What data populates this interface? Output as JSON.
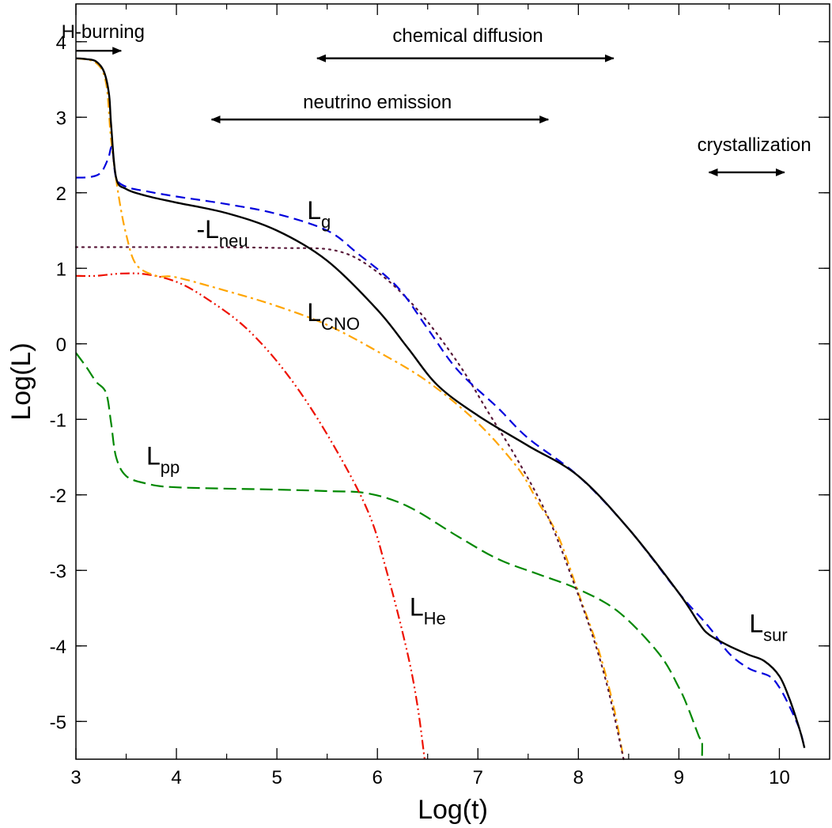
{
  "chart_data": {
    "type": "line",
    "xlabel": "Log(t)",
    "ylabel": "Log(L)",
    "xlim": [
      3,
      10.5
    ],
    "ylim": [
      -5.5,
      4.5
    ],
    "grid": false,
    "x_ticks": [
      3,
      4,
      5,
      6,
      7,
      8,
      9,
      10
    ],
    "y_ticks": [
      4,
      3,
      2,
      1,
      0,
      -1,
      -2,
      -3,
      -4,
      -5
    ],
    "x_tick_labels": [
      "3",
      "4",
      "5",
      "6",
      "7",
      "8",
      "9",
      "10"
    ],
    "y_tick_labels": [
      "4",
      "3",
      "2",
      "1",
      "0",
      "-1",
      "-2",
      "-3",
      "-4",
      "-5"
    ],
    "series": [
      {
        "key": "sur",
        "color": "#000000",
        "dash": "solid",
        "points": [
          [
            3.0,
            3.78
          ],
          [
            3.1,
            3.77
          ],
          [
            3.2,
            3.74
          ],
          [
            3.28,
            3.6
          ],
          [
            3.33,
            3.3
          ],
          [
            3.35,
            2.9
          ],
          [
            3.4,
            2.2
          ],
          [
            3.5,
            2.05
          ],
          [
            3.7,
            1.96
          ],
          [
            4.0,
            1.87
          ],
          [
            4.5,
            1.73
          ],
          [
            5.0,
            1.5
          ],
          [
            5.5,
            1.1
          ],
          [
            6.0,
            0.45
          ],
          [
            6.3,
            -0.05
          ],
          [
            6.6,
            -0.55
          ],
          [
            7.0,
            -0.95
          ],
          [
            7.5,
            -1.35
          ],
          [
            8.0,
            -1.75
          ],
          [
            8.5,
            -2.45
          ],
          [
            9.0,
            -3.3
          ],
          [
            9.2,
            -3.7
          ],
          [
            9.3,
            -3.85
          ],
          [
            9.5,
            -4.0
          ],
          [
            9.7,
            -4.12
          ],
          [
            9.85,
            -4.2
          ],
          [
            10.0,
            -4.4
          ],
          [
            10.1,
            -4.7
          ],
          [
            10.2,
            -5.1
          ],
          [
            10.25,
            -5.35
          ]
        ]
      },
      {
        "key": "g",
        "color": "#0000dd",
        "dash": "12,7",
        "points": [
          [
            3.0,
            2.2
          ],
          [
            3.15,
            2.21
          ],
          [
            3.25,
            2.27
          ],
          [
            3.32,
            2.45
          ],
          [
            3.36,
            2.6
          ],
          [
            3.4,
            2.2
          ],
          [
            3.5,
            2.08
          ],
          [
            3.7,
            2.02
          ],
          [
            4.0,
            1.95
          ],
          [
            4.5,
            1.85
          ],
          [
            5.0,
            1.72
          ],
          [
            5.5,
            1.5
          ],
          [
            5.8,
            1.2
          ],
          [
            6.2,
            0.75
          ],
          [
            6.5,
            0.2
          ],
          [
            6.8,
            -0.35
          ],
          [
            7.2,
            -0.85
          ],
          [
            7.5,
            -1.25
          ],
          [
            8.0,
            -1.75
          ],
          [
            8.5,
            -2.45
          ],
          [
            9.0,
            -3.3
          ],
          [
            9.3,
            -3.75
          ],
          [
            9.5,
            -4.1
          ],
          [
            9.7,
            -4.3
          ],
          [
            9.9,
            -4.4
          ],
          [
            10.0,
            -4.55
          ],
          [
            10.1,
            -4.8
          ],
          [
            10.2,
            -5.1
          ],
          [
            10.25,
            -5.35
          ]
        ]
      },
      {
        "key": "neu",
        "color": "#5a1a3a",
        "dash": "2,6",
        "points": [
          [
            3.0,
            1.28
          ],
          [
            4.0,
            1.28
          ],
          [
            5.0,
            1.27
          ],
          [
            5.6,
            1.23
          ],
          [
            6.0,
            0.95
          ],
          [
            6.4,
            0.45
          ],
          [
            6.8,
            -0.25
          ],
          [
            7.1,
            -0.9
          ],
          [
            7.4,
            -1.55
          ],
          [
            7.7,
            -2.3
          ],
          [
            7.95,
            -3.15
          ],
          [
            8.15,
            -3.9
          ],
          [
            8.3,
            -4.6
          ],
          [
            8.45,
            -5.5
          ]
        ]
      },
      {
        "key": "cno",
        "color": "#ffa500",
        "dash": "12,5,3,5",
        "points": [
          [
            3.0,
            3.78
          ],
          [
            3.2,
            3.72
          ],
          [
            3.3,
            3.45
          ],
          [
            3.35,
            2.7
          ],
          [
            3.42,
            2.0
          ],
          [
            3.5,
            1.45
          ],
          [
            3.6,
            1.05
          ],
          [
            3.8,
            0.9
          ],
          [
            4.0,
            0.88
          ],
          [
            4.5,
            0.7
          ],
          [
            5.0,
            0.5
          ],
          [
            5.5,
            0.25
          ],
          [
            6.0,
            -0.1
          ],
          [
            6.5,
            -0.5
          ],
          [
            7.0,
            -1.05
          ],
          [
            7.4,
            -1.65
          ],
          [
            7.6,
            -2.1
          ],
          [
            7.8,
            -2.55
          ],
          [
            8.0,
            -3.3
          ],
          [
            8.2,
            -4.05
          ],
          [
            8.35,
            -4.8
          ],
          [
            8.45,
            -5.5
          ]
        ]
      },
      {
        "key": "he",
        "color": "#ee1100",
        "dash": "12,4,2,4,2,4",
        "points": [
          [
            3.0,
            0.9
          ],
          [
            3.2,
            0.9
          ],
          [
            3.45,
            0.93
          ],
          [
            3.7,
            0.92
          ],
          [
            4.0,
            0.82
          ],
          [
            4.3,
            0.6
          ],
          [
            4.7,
            0.2
          ],
          [
            5.1,
            -0.4
          ],
          [
            5.5,
            -1.2
          ],
          [
            5.9,
            -2.2
          ],
          [
            6.1,
            -3.05
          ],
          [
            6.3,
            -4.1
          ],
          [
            6.4,
            -4.8
          ],
          [
            6.47,
            -5.5
          ]
        ]
      },
      {
        "key": "pp",
        "color": "#008800",
        "dash": "16,7",
        "points": [
          [
            3.0,
            -0.12
          ],
          [
            3.1,
            -0.3
          ],
          [
            3.2,
            -0.5
          ],
          [
            3.3,
            -0.65
          ],
          [
            3.35,
            -1.05
          ],
          [
            3.4,
            -1.5
          ],
          [
            3.5,
            -1.75
          ],
          [
            3.7,
            -1.85
          ],
          [
            4.0,
            -1.9
          ],
          [
            5.0,
            -1.93
          ],
          [
            5.5,
            -1.95
          ],
          [
            5.9,
            -1.98
          ],
          [
            6.3,
            -2.15
          ],
          [
            6.8,
            -2.55
          ],
          [
            7.2,
            -2.85
          ],
          [
            7.6,
            -3.05
          ],
          [
            8.0,
            -3.25
          ],
          [
            8.4,
            -3.55
          ],
          [
            8.8,
            -4.1
          ],
          [
            9.0,
            -4.55
          ],
          [
            9.1,
            -4.85
          ],
          [
            9.2,
            -5.2
          ],
          [
            9.23,
            -5.25
          ],
          [
            9.23,
            -5.5
          ]
        ]
      }
    ],
    "curve_labels": [
      {
        "main": "L",
        "sub": "g",
        "x": 5.3,
        "y": 1.65
      },
      {
        "main": "-L",
        "sub": "neu",
        "x": 4.2,
        "y": 1.4
      },
      {
        "main": "L",
        "sub": "CNO",
        "x": 5.3,
        "y": 0.3
      },
      {
        "main": "L",
        "sub": "pp",
        "x": 3.7,
        "y": -1.6
      },
      {
        "main": "L",
        "sub": "He",
        "x": 6.32,
        "y": -3.6
      },
      {
        "main": "L",
        "sub": "sur",
        "x": 9.7,
        "y": -3.82
      }
    ],
    "phase_annotations": [
      {
        "text": "H-burning",
        "x1": 3.0,
        "x2": 3.45,
        "arrow_y": 3.88,
        "label_x": 3.27,
        "label_y": 4.05,
        "heads": "end"
      },
      {
        "text": "chemical diffusion",
        "x1": 5.4,
        "x2": 8.35,
        "arrow_y": 3.78,
        "label_x": 6.9,
        "label_y": 4.0,
        "heads": "both"
      },
      {
        "text": "neutrino emission",
        "x1": 4.35,
        "x2": 7.7,
        "arrow_y": 2.97,
        "label_x": 6.0,
        "label_y": 3.12,
        "heads": "both"
      },
      {
        "text": "crystallization",
        "x1": 9.3,
        "x2": 10.05,
        "arrow_y": 2.27,
        "label_x": 9.75,
        "label_y": 2.55,
        "heads": "both"
      }
    ]
  }
}
